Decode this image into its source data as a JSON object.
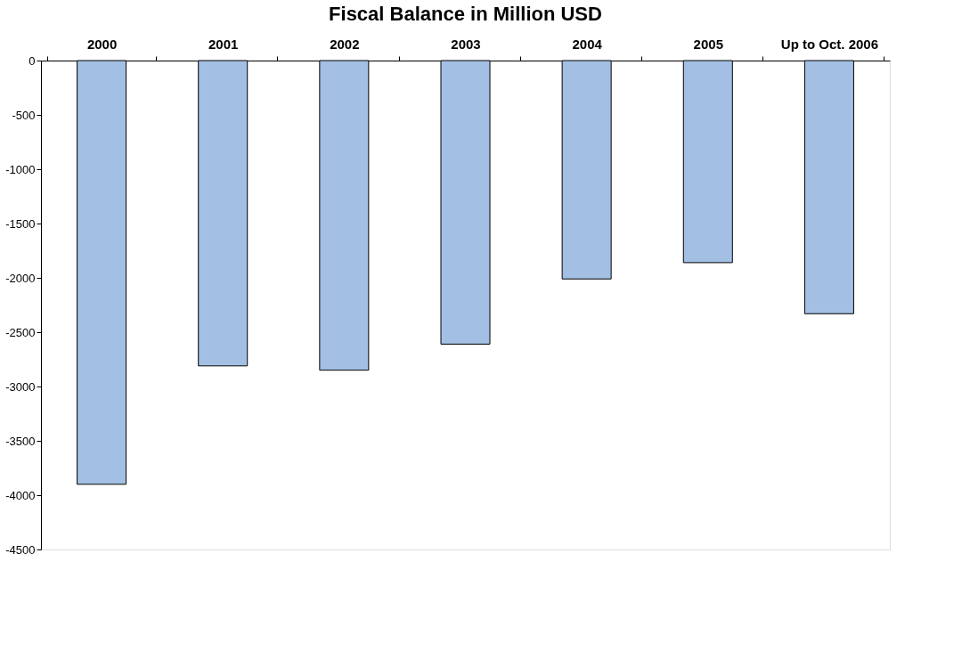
{
  "chart_data": {
    "type": "bar",
    "title": "Fiscal Balance in Million USD",
    "categories": [
      "2000",
      "2001",
      "2002",
      "2003",
      "2004",
      "2005",
      "Up to Oct. 2006"
    ],
    "values": [
      -3900,
      -2810,
      -2850,
      -2610,
      -2010,
      -1860,
      -2330
    ],
    "color": "#a3bfe3",
    "ylim": [
      -4500,
      0
    ],
    "yticks": [
      -4500,
      -4000,
      -3500,
      -3000,
      -2500,
      -2000,
      -1500,
      -1000,
      -500,
      0
    ],
    "grid": false
  }
}
